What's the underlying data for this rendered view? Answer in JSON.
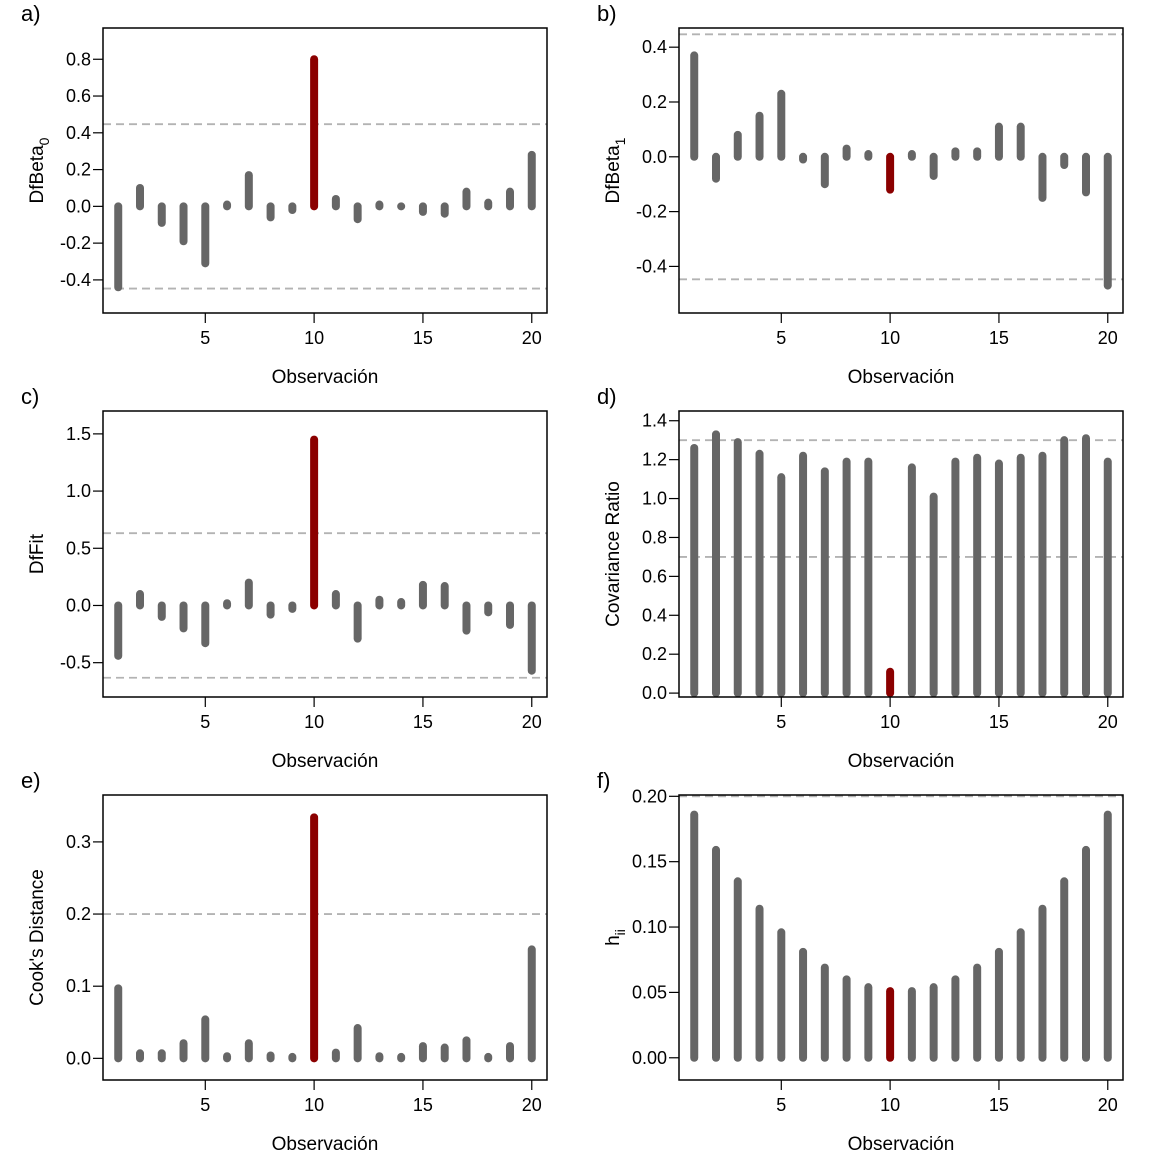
{
  "colors": {
    "normal": "#666666",
    "highlight": "#8b0000",
    "reference": "#b3b3b3"
  },
  "chart_data": [
    {
      "panel": "a)",
      "type": "bar",
      "ylabel": "DfBeta",
      "ylabel_sub": "0",
      "xlabel": "Observación",
      "x": [
        1,
        2,
        3,
        4,
        5,
        6,
        7,
        8,
        9,
        10,
        11,
        12,
        13,
        14,
        15,
        16,
        17,
        18,
        19,
        20
      ],
      "values": [
        -0.44,
        0.1,
        -0.09,
        -0.19,
        -0.31,
        0.01,
        0.17,
        -0.06,
        -0.02,
        0.8,
        0.04,
        -0.07,
        0.01,
        0.0,
        -0.03,
        -0.04,
        0.08,
        0.02,
        0.08,
        0.28
      ],
      "highlight": 10,
      "reference_lines": [
        0.447,
        -0.447
      ],
      "xlim": [
        0.3,
        20.7
      ],
      "ylim": [
        -0.58,
        0.97
      ],
      "xticks": [
        5,
        10,
        15,
        20
      ],
      "yticks": [
        -0.4,
        -0.2,
        0.0,
        0.2,
        0.4,
        0.6,
        0.8
      ],
      "ytick_labels": [
        "-0.4",
        "-0.2",
        "0.0",
        "0.2",
        "0.4",
        "0.6",
        "0.8"
      ]
    },
    {
      "panel": "b)",
      "type": "bar",
      "ylabel": "DfBeta",
      "ylabel_sub": "1",
      "xlabel": "Observación",
      "x": [
        1,
        2,
        3,
        4,
        5,
        6,
        7,
        8,
        9,
        10,
        11,
        12,
        13,
        14,
        15,
        16,
        17,
        18,
        19,
        20
      ],
      "values": [
        0.37,
        -0.08,
        0.08,
        0.15,
        0.23,
        -0.01,
        -0.1,
        0.03,
        0.01,
        -0.12,
        0.01,
        -0.07,
        0.02,
        0.02,
        0.11,
        0.11,
        -0.15,
        -0.03,
        -0.13,
        -0.47
      ],
      "highlight": 10,
      "reference_lines": [
        0.447,
        -0.447
      ],
      "xlim": [
        0.3,
        20.7
      ],
      "ylim": [
        -0.57,
        0.47
      ],
      "xticks": [
        5,
        10,
        15,
        20
      ],
      "yticks": [
        -0.4,
        -0.2,
        0.0,
        0.2,
        0.4
      ],
      "ytick_labels": [
        "-0.4",
        "-0.2",
        "0.0",
        "0.2",
        "0.4"
      ]
    },
    {
      "panel": "c)",
      "type": "bar",
      "ylabel": "DfFit",
      "ylabel_sub": "",
      "xlabel": "Observación",
      "x": [
        1,
        2,
        3,
        4,
        5,
        6,
        7,
        8,
        9,
        10,
        11,
        12,
        13,
        14,
        15,
        16,
        17,
        18,
        19,
        20
      ],
      "values": [
        -0.44,
        0.1,
        -0.1,
        -0.2,
        -0.33,
        0.02,
        0.2,
        -0.08,
        -0.03,
        1.45,
        0.1,
        -0.29,
        0.05,
        0.03,
        0.18,
        0.17,
        -0.22,
        -0.06,
        -0.17,
        -0.57
      ],
      "highlight": 10,
      "reference_lines": [
        0.632,
        -0.632
      ],
      "xlim": [
        0.3,
        20.7
      ],
      "ylim": [
        -0.8,
        1.7
      ],
      "xticks": [
        5,
        10,
        15,
        20
      ],
      "yticks": [
        -0.5,
        0.0,
        0.5,
        1.0,
        1.5
      ],
      "ytick_labels": [
        "-0.5",
        "0.0",
        "0.5",
        "1.0",
        "1.5"
      ]
    },
    {
      "panel": "d)",
      "type": "bar",
      "ylabel": "Covariance Ratio",
      "ylabel_sub": "",
      "xlabel": "Observación",
      "x": [
        1,
        2,
        3,
        4,
        5,
        6,
        7,
        8,
        9,
        10,
        11,
        12,
        13,
        14,
        15,
        16,
        17,
        18,
        19,
        20
      ],
      "values": [
        1.26,
        1.33,
        1.29,
        1.23,
        1.11,
        1.22,
        1.14,
        1.19,
        1.19,
        0.11,
        1.16,
        1.01,
        1.19,
        1.21,
        1.18,
        1.21,
        1.22,
        1.3,
        1.31,
        1.19
      ],
      "highlight": 10,
      "reference_lines": [
        1.3,
        0.7
      ],
      "xlim": [
        0.3,
        20.7
      ],
      "ylim": [
        -0.02,
        1.45
      ],
      "xticks": [
        5,
        10,
        15,
        20
      ],
      "yticks": [
        0.0,
        0.2,
        0.4,
        0.6,
        0.8,
        1.0,
        1.2,
        1.4
      ],
      "ytick_labels": [
        "0.0",
        "0.2",
        "0.4",
        "0.6",
        "0.8",
        "1.0",
        "1.2",
        "1.4"
      ]
    },
    {
      "panel": "e)",
      "type": "bar",
      "ylabel": "Cook's Distance",
      "ylabel_sub": "",
      "xlabel": "Observación",
      "x": [
        1,
        2,
        3,
        4,
        5,
        6,
        7,
        8,
        9,
        10,
        11,
        12,
        13,
        14,
        15,
        16,
        17,
        18,
        19,
        20
      ],
      "values": [
        0.097,
        0.007,
        0.007,
        0.021,
        0.054,
        0.003,
        0.021,
        0.004,
        0.002,
        0.334,
        0.008,
        0.042,
        0.003,
        0.002,
        0.017,
        0.015,
        0.025,
        0.002,
        0.017,
        0.151
      ],
      "highlight": 10,
      "reference_lines": [
        0.2
      ],
      "xlim": [
        0.3,
        20.7
      ],
      "ylim": [
        -0.03,
        0.365
      ],
      "xticks": [
        5,
        10,
        15,
        20
      ],
      "yticks": [
        0.0,
        0.1,
        0.2,
        0.3
      ],
      "ytick_labels": [
        "0.0",
        "0.1",
        "0.2",
        "0.3"
      ]
    },
    {
      "panel": "f)",
      "type": "bar",
      "ylabel": "h",
      "ylabel_sub": "ii",
      "xlabel": "Observación",
      "x": [
        1,
        2,
        3,
        4,
        5,
        6,
        7,
        8,
        9,
        10,
        11,
        12,
        13,
        14,
        15,
        16,
        17,
        18,
        19,
        20
      ],
      "values": [
        0.186,
        0.159,
        0.135,
        0.114,
        0.096,
        0.081,
        0.069,
        0.06,
        0.054,
        0.051,
        0.051,
        0.054,
        0.06,
        0.069,
        0.081,
        0.096,
        0.114,
        0.135,
        0.159,
        0.186
      ],
      "highlight": 10,
      "reference_lines": [
        0.2
      ],
      "xlim": [
        0.3,
        20.7
      ],
      "ylim": [
        -0.017,
        0.201
      ],
      "xticks": [
        5,
        10,
        15,
        20
      ],
      "yticks": [
        0.0,
        0.05,
        0.1,
        0.15,
        0.2
      ],
      "ytick_labels": [
        "0.00",
        "0.05",
        "0.10",
        "0.15",
        "0.20"
      ]
    }
  ]
}
